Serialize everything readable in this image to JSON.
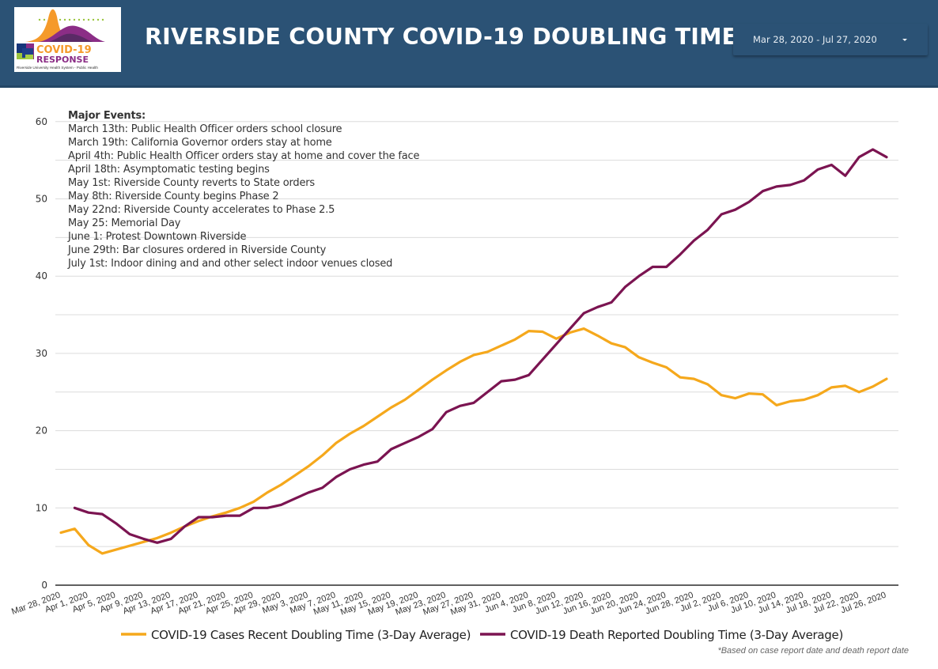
{
  "header": {
    "title": "RIVERSIDE COUNTY COVID-19 DOUBLING TIME",
    "logo": {
      "main": "COVID-19",
      "sub": "RESPONSE",
      "caption": "Riverside University Health System - Public Health"
    },
    "date_range": {
      "label": "Mar 28, 2020 - Jul 27, 2020",
      "icon": "caret-down-icon"
    }
  },
  "events": {
    "title": "Major Events:",
    "items": [
      "March 13th: Public Health Officer orders school closure",
      "March 19th: California Governor orders stay at home",
      "April 4th: Public Health Officer orders stay at home and cover the face",
      "April 18th: Asymptomatic testing begins",
      "May 1st: Riverside County reverts to State orders",
      "May 8th: Riverside County begins Phase 2",
      "May 22nd: Riverside County accelerates to Phase 2.5",
      "May 25: Memorial Day",
      "June 1: Protest Downtown Riverside",
      "June 29th: Bar closures ordered in Riverside County",
      "July 1st: Indoor dining and and other select indoor venues closed"
    ]
  },
  "footnote": "*Based on case report date and death report date",
  "chart_data": {
    "type": "line",
    "title": "RIVERSIDE COUNTY COVID-19 DOUBLING TIME",
    "xlabel": "",
    "ylabel": "",
    "ylim": [
      0,
      60
    ],
    "yticks": [
      0,
      10,
      20,
      30,
      40,
      50,
      60
    ],
    "grid": true,
    "legend": "bottom",
    "x_start": "2020-03-28",
    "x_step_days": 2,
    "x_days": [
      0,
      2,
      4,
      6,
      8,
      10,
      12,
      14,
      16,
      18,
      20,
      22,
      24,
      26,
      28,
      30,
      32,
      34,
      36,
      38,
      40,
      42,
      44,
      46,
      48,
      50,
      52,
      54,
      56,
      58,
      60,
      62,
      64,
      66,
      68,
      70,
      72,
      74,
      76,
      78,
      80,
      82,
      84,
      86,
      88,
      90,
      92,
      94,
      96,
      98,
      100,
      102,
      104,
      106,
      108,
      110,
      112,
      114,
      116,
      118,
      120
    ],
    "tick_labels": [
      "Mar 28, 2020",
      "Apr 1, 2020",
      "Apr 5, 2020",
      "Apr 9, 2020",
      "Apr 13, 2020",
      "Apr 17, 2020",
      "Apr 21, 2020",
      "Apr 25, 2020",
      "Apr 29, 2020",
      "May 3, 2020",
      "May 7, 2020",
      "May 11, 2020",
      "May 15, 2020",
      "May 19, 2020",
      "May 23, 2020",
      "May 27, 2020",
      "May 31, 2020",
      "Jun 4, 2020",
      "Jun 8, 2020",
      "Jun 12, 2020",
      "Jun 16, 2020",
      "Jun 20, 2020",
      "Jun 24, 2020",
      "Jun 28, 2020",
      "Jul 2, 2020",
      "Jul 6, 2020",
      "Jul 10, 2020",
      "Jul 14, 2020",
      "Jul 18, 2020",
      "Jul 22, 2020",
      "Jul 26, 2020"
    ],
    "series": [
      {
        "name": "COVID-19 Cases Recent Doubling Time (3-Day Average)",
        "color": "#f5a81c",
        "values": [
          6.8,
          7.3,
          5.2,
          4.1,
          4.6,
          5.1,
          5.6,
          6.1,
          6.8,
          7.6,
          8.3,
          8.9,
          9.4,
          10.0,
          10.8,
          12.0,
          13.0,
          14.2,
          15.4,
          16.8,
          18.4,
          19.6,
          20.6,
          21.8,
          23.0,
          24.0,
          25.3,
          26.6,
          27.8,
          28.9,
          29.8,
          30.2,
          31.0,
          31.8,
          32.9,
          32.8,
          31.9,
          32.7,
          33.2,
          32.3,
          31.3,
          30.8,
          29.5,
          28.8,
          28.2,
          26.9,
          26.7,
          26.0,
          24.6,
          24.2,
          24.8,
          24.7,
          23.3,
          23.8,
          24.0,
          24.6,
          25.6,
          25.8,
          25.0,
          25.7,
          26.7
        ]
      },
      {
        "name": "COVID-19 Death Reported Doubling Time (3-Day Average)",
        "color": "#7b1451",
        "values": [
          null,
          10.0,
          9.4,
          9.2,
          8.0,
          6.6,
          6.0,
          5.5,
          6.0,
          7.6,
          8.8,
          8.8,
          9.0,
          9.0,
          10.0,
          10.0,
          10.4,
          11.2,
          12.0,
          12.6,
          14.0,
          15.0,
          15.6,
          16.0,
          17.6,
          18.4,
          19.2,
          20.2,
          22.4,
          23.2,
          23.6,
          25.0,
          26.4,
          26.6,
          27.2,
          29.2,
          31.2,
          33.2,
          35.2,
          36.0,
          36.6,
          38.6,
          40.0,
          41.2,
          41.2,
          42.8,
          44.6,
          46.0,
          48.0,
          48.6,
          49.6,
          51.0,
          51.6,
          51.8,
          52.4,
          53.8,
          54.4,
          53.0,
          55.4,
          56.4,
          55.4
        ]
      }
    ]
  }
}
